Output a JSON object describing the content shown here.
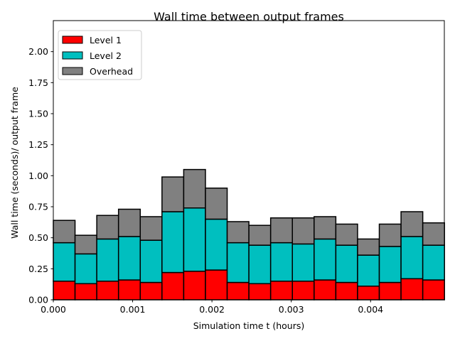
{
  "chart_data": {
    "type": "bar",
    "stacked": true,
    "title": "Wall time between output frames",
    "xlabel": "Simulation time t (hours)",
    "ylabel": "Wall time (seconds)/ output frame",
    "xlim": [
      0.0,
      0.00493
    ],
    "ylim": [
      0.0,
      2.25
    ],
    "bin_width": 0.000274,
    "x": [
      0.0,
      0.000274,
      0.000548,
      0.000822,
      0.001096,
      0.00137,
      0.001644,
      0.001918,
      0.002192,
      0.002466,
      0.00274,
      0.003014,
      0.003288,
      0.003562,
      0.003836,
      0.00411,
      0.004384,
      0.004658
    ],
    "series": [
      {
        "name": "Level 1",
        "color": "#ff0000",
        "values": [
          0.15,
          0.13,
          0.15,
          0.16,
          0.14,
          0.22,
          0.23,
          0.24,
          0.14,
          0.13,
          0.15,
          0.15,
          0.16,
          0.14,
          0.11,
          0.14,
          0.17,
          0.16
        ]
      },
      {
        "name": "Level 2",
        "color": "#00bfbf",
        "values": [
          0.31,
          0.24,
          0.34,
          0.35,
          0.34,
          0.49,
          0.51,
          0.41,
          0.32,
          0.31,
          0.31,
          0.3,
          0.33,
          0.3,
          0.25,
          0.29,
          0.34,
          0.28
        ]
      },
      {
        "name": "Overhead",
        "color": "#808080",
        "values": [
          0.18,
          0.15,
          0.19,
          0.22,
          0.19,
          0.28,
          0.31,
          0.25,
          0.17,
          0.16,
          0.2,
          0.21,
          0.18,
          0.17,
          0.13,
          0.18,
          0.2,
          0.18
        ]
      }
    ],
    "xticks": [
      {
        "value": 0.0,
        "label": "0.000"
      },
      {
        "value": 0.001,
        "label": "0.001"
      },
      {
        "value": 0.002,
        "label": "0.002"
      },
      {
        "value": 0.003,
        "label": "0.003"
      },
      {
        "value": 0.004,
        "label": "0.004"
      }
    ],
    "yticks": [
      {
        "value": 0.0,
        "label": "0.00"
      },
      {
        "value": 0.25,
        "label": "0.25"
      },
      {
        "value": 0.5,
        "label": "0.50"
      },
      {
        "value": 0.75,
        "label": "0.75"
      },
      {
        "value": 1.0,
        "label": "1.00"
      },
      {
        "value": 1.25,
        "label": "1.25"
      },
      {
        "value": 1.5,
        "label": "1.50"
      },
      {
        "value": 1.75,
        "label": "1.75"
      },
      {
        "value": 2.0,
        "label": "2.00"
      }
    ],
    "legend": {
      "position": "top-left",
      "entries": [
        "Level 1",
        "Level 2",
        "Overhead"
      ]
    },
    "grid": false
  }
}
